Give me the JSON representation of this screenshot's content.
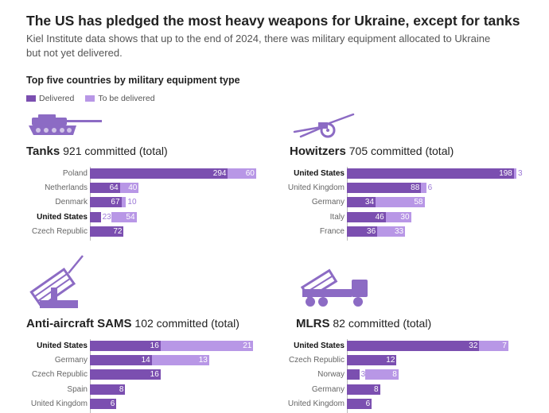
{
  "title": "The US has pledged the most heavy weapons for Ukraine, except for tanks",
  "subtitle": "Kiel Institute data shows that up to the end of 2024, there was military equipment allocated to Ukraine but not yet delivered.",
  "section_title": "Top five countries by military equipment type",
  "legend": {
    "delivered": "Delivered",
    "to_be_delivered": "To be delivered"
  },
  "colors": {
    "delivered": "#7b4fb0",
    "to_be_delivered": "#b897e6",
    "icon": "#8c6bc4"
  },
  "chart_data": [
    {
      "type": "bar",
      "stacked": true,
      "orientation": "horizontal",
      "name": "Tanks",
      "committed": "921 committed (total)",
      "icon": "tank-icon",
      "categories": [
        "Poland",
        "Netherlands",
        "Denmark",
        "United States",
        "Czech Republic"
      ],
      "highlight": "United States",
      "series": [
        {
          "name": "Delivered",
          "values": [
            294,
            64,
            67,
            23,
            72
          ]
        },
        {
          "name": "To be delivered",
          "values": [
            60,
            40,
            10,
            54,
            null
          ]
        }
      ]
    },
    {
      "type": "bar",
      "stacked": true,
      "orientation": "horizontal",
      "name": "Howitzers",
      "committed": "705 committed (total)",
      "icon": "howitzer-icon",
      "categories": [
        "United States",
        "United Kingdom",
        "Germany",
        "Italy",
        "France"
      ],
      "highlight": "United States",
      "series": [
        {
          "name": "Delivered",
          "values": [
            198,
            88,
            34,
            46,
            36
          ]
        },
        {
          "name": "To be delivered",
          "values": [
            3,
            6,
            58,
            30,
            33
          ]
        }
      ]
    },
    {
      "type": "bar",
      "stacked": true,
      "orientation": "horizontal",
      "name": "Anti-aircraft SAMS",
      "committed": "102 committed (total)",
      "icon": "missile-launcher-icon",
      "categories": [
        "United States",
        "Germany",
        "Czech Republic",
        "Spain",
        "United Kingdom"
      ],
      "highlight": "United States",
      "series": [
        {
          "name": "Delivered",
          "values": [
            16,
            14,
            16,
            8,
            6
          ]
        },
        {
          "name": "To be delivered",
          "values": [
            21,
            13,
            null,
            null,
            null
          ]
        }
      ]
    },
    {
      "type": "bar",
      "stacked": true,
      "orientation": "horizontal",
      "name": "MLRS",
      "committed": "82 committed (total)",
      "icon": "rocket-launcher-truck-icon",
      "categories": [
        "United States",
        "Czech Republic",
        "Norway",
        "Germany",
        "United Kingdom"
      ],
      "highlight": "United States",
      "series": [
        {
          "name": "Delivered",
          "values": [
            32,
            12,
            3,
            8,
            6
          ]
        },
        {
          "name": "To be delivered",
          "values": [
            7,
            null,
            8,
            null,
            null
          ]
        }
      ]
    }
  ]
}
